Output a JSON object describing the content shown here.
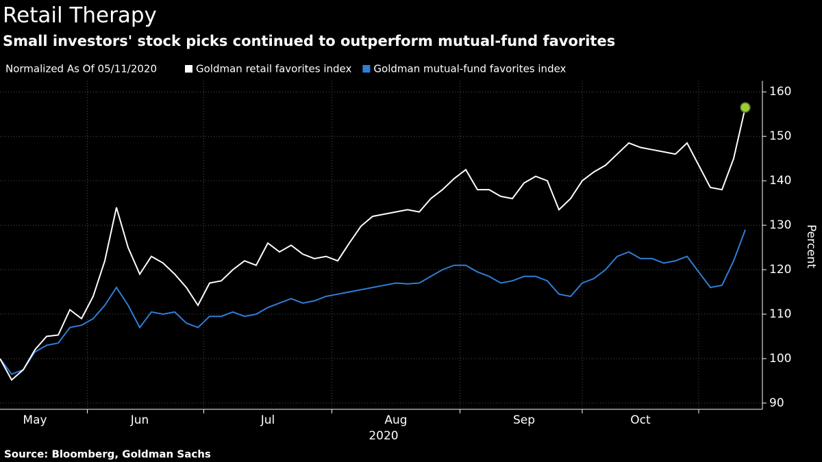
{
  "chart_data": {
    "type": "line",
    "title": "Retail Therapy",
    "subtitle": "Small investors' stock picks continued to outperform mutual-fund favorites",
    "legend_note": "Normalized As Of 05/11/2020",
    "ylabel": "Percent",
    "xlabel": "2020",
    "source": "Source: Bloomberg, Goldman Sachs",
    "categories": [
      null,
      null,
      null,
      "May",
      null,
      null,
      null,
      null,
      null,
      null,
      null,
      null,
      "Jun",
      null,
      null,
      null,
      null,
      null,
      null,
      null,
      null,
      null,
      null,
      "Jul",
      null,
      null,
      null,
      null,
      null,
      null,
      null,
      null,
      null,
      null,
      "Aug",
      null,
      null,
      null,
      null,
      null,
      null,
      null,
      null,
      null,
      null,
      "Sep",
      null,
      null,
      null,
      null,
      null,
      null,
      null,
      null,
      null,
      "Oct",
      null,
      null,
      null,
      null,
      null,
      null,
      null,
      null,
      null
    ],
    "series": [
      {
        "name": "Goldman retail favorites index",
        "color": "#ffffff",
        "values": [
          100,
          95.2,
          97.5,
          102,
          105,
          105.3,
          111,
          109,
          114,
          122,
          134,
          125,
          119,
          123,
          121.5,
          119,
          116,
          112,
          117,
          117.5,
          120,
          122,
          121,
          126,
          124,
          125.5,
          123.5,
          122.5,
          123,
          122,
          126,
          129.8,
          132,
          132.5,
          133,
          133.5,
          133,
          136,
          138,
          140.5,
          142.5,
          138,
          138,
          136.5,
          136,
          139.5,
          141,
          140,
          133.5,
          136,
          140,
          142,
          143.5,
          146,
          148.5,
          147.5,
          147,
          146.5,
          146,
          148.5,
          143.5,
          138.5,
          138,
          145,
          156.5
        ]
      },
      {
        "name": "Goldman mutual-fund favorites index",
        "color": "#2f7ed8",
        "values": [
          100,
          96.5,
          97.5,
          101.5,
          103,
          103.5,
          107,
          107.5,
          109,
          112,
          116,
          112,
          107,
          110.5,
          110,
          110.5,
          108,
          107,
          109.5,
          109.5,
          110.5,
          109.5,
          110,
          111.5,
          112.5,
          113.5,
          112.5,
          113,
          114,
          114.5,
          115,
          115.5,
          116,
          116.5,
          117,
          116.8,
          117,
          118.5,
          120,
          121,
          121,
          119.5,
          118.5,
          117,
          117.5,
          118.5,
          118.5,
          117.5,
          114.5,
          114,
          117,
          118,
          120,
          123,
          124,
          122.5,
          122.5,
          121.5,
          122,
          123,
          119.5,
          116,
          116.5,
          122,
          129
        ]
      }
    ],
    "highlight_color": "#9acd32",
    "ylim": [
      88.6,
      162.5
    ],
    "yticks": [
      90,
      100,
      110,
      120,
      130,
      140,
      150,
      160
    ],
    "grid": true
  }
}
